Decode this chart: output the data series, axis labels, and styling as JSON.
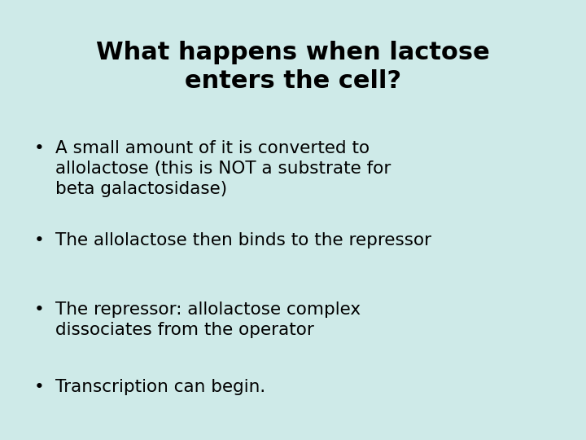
{
  "background_color": "#ceeae8",
  "title_line1": "What happens when lactose",
  "title_line2": "enters the cell?",
  "title_fontsize": 22,
  "title_fontweight": "bold",
  "title_color": "#000000",
  "bullet_color": "#000000",
  "bullet_fontsize": 15.5,
  "bullet_items": [
    "A small amount of it is converted to\nallolactose (this is NOT a substrate for\nbeta galactosidase)",
    "The allolactose then binds to the repressor",
    "The repressor: allolactose complex\ndissociates from the operator",
    "Transcription can begin."
  ],
  "figwidth": 7.2,
  "figheight": 5.4,
  "dpi": 100
}
